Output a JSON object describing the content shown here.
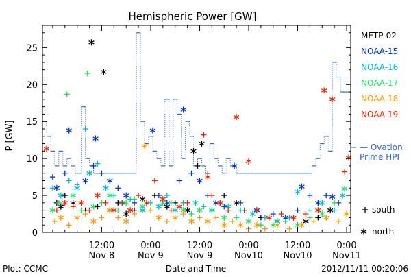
{
  "chart_data": {
    "type": "scatter",
    "title": "Hemispheric Power [GW]",
    "ylabel": "P [GW]",
    "xlabel": "Date and Time",
    "footer_left": "Plot: CCMC",
    "footer_right": "2012/11/11 00:20:06",
    "x_unit": "hours since 2012-11-08 00:00 UTC",
    "xlim": [
      -2.5,
      73
    ],
    "ylim": [
      0,
      28
    ],
    "yticks": [
      0,
      5,
      10,
      15,
      20,
      25
    ],
    "xticks": [
      {
        "x": 12,
        "line1": "12:00",
        "line2": "Nov 8"
      },
      {
        "x": 24,
        "line1": "0:00",
        "line2": "Nov 9"
      },
      {
        "x": 36,
        "line1": "12:00",
        "line2": "Nov 9"
      },
      {
        "x": 48,
        "line1": "0:00",
        "line2": "Nov10"
      },
      {
        "x": 60,
        "line1": "12:00",
        "line2": "Nov10"
      },
      {
        "x": 72,
        "line1": "0:00",
        "line2": "Nov11"
      }
    ],
    "satellites": [
      {
        "name": "METP-02",
        "color": "#000000"
      },
      {
        "name": "NOAA-15",
        "color": "#0033cc"
      },
      {
        "name": "NOAA-16",
        "color": "#00bbcc"
      },
      {
        "name": "NOAA-17",
        "color": "#22dd66"
      },
      {
        "name": "NOAA-18",
        "color": "#ff9900"
      },
      {
        "name": "NOAA-19",
        "color": "#ee2200"
      }
    ],
    "markers": {
      "south_symbol": "+",
      "south_label": "south",
      "north_symbol": "*",
      "north_label": "north"
    },
    "ovation": {
      "label_line1": "— Ovation",
      "label_line2": "Prime HPI",
      "color": "#3366cc",
      "steps": [
        [
          -2.5,
          15
        ],
        [
          -1.5,
          13
        ],
        [
          -0.5,
          11
        ],
        [
          0.5,
          9
        ],
        [
          1.5,
          11
        ],
        [
          2.5,
          9
        ],
        [
          3.5,
          10
        ],
        [
          4.5,
          9
        ],
        [
          5.5,
          8
        ],
        [
          7,
          17
        ],
        [
          8,
          10
        ],
        [
          9,
          9
        ],
        [
          10,
          8
        ],
        [
          15,
          8
        ],
        [
          18,
          8
        ],
        [
          20.5,
          27
        ],
        [
          21.5,
          15
        ],
        [
          22.5,
          12
        ],
        [
          23.5,
          13
        ],
        [
          24.5,
          11
        ],
        [
          25.5,
          10
        ],
        [
          26.5,
          9
        ],
        [
          27.5,
          18
        ],
        [
          28.5,
          9
        ],
        [
          29.5,
          18
        ],
        [
          30.5,
          16
        ],
        [
          31.5,
          10
        ],
        [
          32.5,
          15
        ],
        [
          33.5,
          13
        ],
        [
          34.5,
          9
        ],
        [
          35.5,
          10
        ],
        [
          36.5,
          9
        ],
        [
          37.5,
          8
        ],
        [
          38.5,
          12
        ],
        [
          39.5,
          10
        ],
        [
          40.5,
          9
        ],
        [
          41.5,
          8
        ],
        [
          42.5,
          10
        ],
        [
          43.5,
          9
        ],
        [
          44.5,
          9
        ],
        [
          45,
          8
        ],
        [
          58,
          8
        ],
        [
          62.5,
          8
        ],
        [
          63.5,
          9
        ],
        [
          64.5,
          10
        ],
        [
          65.5,
          12
        ],
        [
          66.5,
          13
        ],
        [
          67.5,
          11
        ],
        [
          68.5,
          23
        ],
        [
          69.5,
          21
        ],
        [
          70.5,
          19
        ],
        [
          73,
          19
        ]
      ]
    },
    "series": [
      {
        "name": "METP-02",
        "color": "#000000",
        "points": [
          [
            1,
            4,
            "+"
          ],
          [
            2,
            3.5,
            "*"
          ],
          [
            3,
            5,
            "+"
          ],
          [
            5,
            4,
            "*"
          ],
          [
            8,
            3,
            "+"
          ],
          [
            9.5,
            25.7,
            "*"
          ],
          [
            11,
            3.5,
            "+"
          ],
          [
            12.5,
            21.7,
            "*"
          ],
          [
            14,
            3,
            "*"
          ],
          [
            16,
            4,
            "+"
          ],
          [
            18,
            2.5,
            "*"
          ],
          [
            20,
            3,
            "+"
          ],
          [
            22,
            4.5,
            "*"
          ],
          [
            25,
            5,
            "+"
          ],
          [
            28,
            3.5,
            "*"
          ],
          [
            30,
            4,
            "+"
          ],
          [
            33,
            3,
            "*"
          ],
          [
            34.5,
            11,
            "*"
          ],
          [
            35.5,
            9,
            "+"
          ],
          [
            36.5,
            12,
            "*"
          ],
          [
            38,
            8,
            "+"
          ],
          [
            40,
            4,
            "*"
          ],
          [
            42,
            5,
            "+"
          ],
          [
            45,
            4,
            "*"
          ],
          [
            47,
            3,
            "+"
          ],
          [
            51,
            2,
            "+"
          ],
          [
            55,
            1.5,
            "*"
          ],
          [
            58,
            2,
            "+"
          ],
          [
            62,
            1.5,
            "*"
          ],
          [
            65,
            2,
            "+"
          ],
          [
            68,
            3,
            "*"
          ]
        ]
      },
      {
        "name": "NOAA-15",
        "color": "#0033cc",
        "points": [
          [
            0,
            7.5,
            "+"
          ],
          [
            1,
            6,
            "*"
          ],
          [
            3,
            8,
            "+"
          ],
          [
            4,
            13.8,
            "*"
          ],
          [
            6,
            6.5,
            "+"
          ],
          [
            8,
            7,
            "*"
          ],
          [
            10,
            9,
            "+"
          ],
          [
            10.5,
            12.7,
            "*"
          ],
          [
            12,
            8,
            "+"
          ],
          [
            14,
            7,
            "*"
          ],
          [
            16,
            6,
            "+"
          ],
          [
            18,
            5,
            "*"
          ],
          [
            20,
            4,
            "+"
          ],
          [
            24.5,
            13.8,
            "*"
          ],
          [
            26,
            5,
            "+"
          ],
          [
            28,
            4,
            "*"
          ],
          [
            31,
            7,
            "+"
          ],
          [
            32,
            16.6,
            "*"
          ],
          [
            34,
            8,
            "+"
          ],
          [
            36,
            7,
            "*"
          ],
          [
            38,
            5,
            "+"
          ],
          [
            40,
            4,
            "*"
          ],
          [
            42,
            3.5,
            "+"
          ],
          [
            44.5,
            9,
            "*"
          ],
          [
            46,
            4,
            "+"
          ],
          [
            50,
            3,
            "*"
          ],
          [
            54,
            2.5,
            "+"
          ],
          [
            57,
            2,
            "*"
          ],
          [
            60,
            3,
            "+"
          ],
          [
            61,
            6.2,
            "*"
          ],
          [
            63,
            5,
            "+"
          ],
          [
            65,
            4,
            "*"
          ],
          [
            67,
            5,
            "+"
          ],
          [
            68.5,
            4.8,
            "*"
          ],
          [
            70,
            4,
            "+"
          ]
        ]
      },
      {
        "name": "NOAA-16",
        "color": "#00bbcc",
        "points": [
          [
            0,
            6,
            "+"
          ],
          [
            2,
            5,
            "*"
          ],
          [
            4,
            7,
            "+"
          ],
          [
            6,
            6,
            "*"
          ],
          [
            8,
            14,
            "+"
          ],
          [
            9,
            8,
            "*"
          ],
          [
            11,
            9.3,
            "+"
          ],
          [
            13,
            6,
            "*"
          ],
          [
            15,
            5,
            "+"
          ],
          [
            17,
            4,
            "*"
          ],
          [
            19,
            4.5,
            "+"
          ],
          [
            22,
            3,
            "*"
          ],
          [
            24,
            4,
            "+"
          ],
          [
            26,
            3.5,
            "*"
          ],
          [
            28,
            5,
            "+"
          ],
          [
            30,
            3,
            "*"
          ],
          [
            32,
            4,
            "+"
          ],
          [
            35,
            4,
            "*"
          ],
          [
            37,
            3.5,
            "+"
          ],
          [
            39,
            3,
            "*"
          ],
          [
            41,
            4,
            "+"
          ],
          [
            43,
            3.5,
            "*"
          ],
          [
            46,
            3,
            "+"
          ],
          [
            49,
            2.5,
            "*"
          ],
          [
            52,
            2,
            "+"
          ],
          [
            55,
            1.5,
            "*"
          ],
          [
            58,
            2,
            "+"
          ],
          [
            60,
            5.5,
            "*"
          ],
          [
            63,
            3,
            "+"
          ],
          [
            66,
            4,
            "*"
          ],
          [
            69,
            3,
            "+"
          ],
          [
            71,
            5,
            "*"
          ]
        ]
      },
      {
        "name": "NOAA-17",
        "color": "#22dd66",
        "points": [
          [
            0,
            3,
            "*"
          ],
          [
            1.5,
            4,
            "+"
          ],
          [
            3.5,
            18.7,
            "+"
          ],
          [
            5,
            5,
            "*"
          ],
          [
            7,
            3,
            "+"
          ],
          [
            8.5,
            21.5,
            "+"
          ],
          [
            10,
            3.5,
            "*"
          ],
          [
            12,
            4,
            "+"
          ],
          [
            14,
            5,
            "*"
          ],
          [
            16,
            3,
            "+"
          ],
          [
            18,
            4,
            "*"
          ],
          [
            20,
            4.5,
            "+"
          ],
          [
            22,
            3.5,
            "*"
          ],
          [
            24,
            3,
            "+"
          ],
          [
            27,
            4,
            "*"
          ],
          [
            29,
            4,
            "+"
          ],
          [
            32,
            3,
            "*"
          ],
          [
            34,
            2.5,
            "+"
          ],
          [
            36,
            3,
            "*"
          ],
          [
            39,
            3,
            "+"
          ],
          [
            42,
            2,
            "*"
          ],
          [
            45,
            2,
            "+"
          ],
          [
            48,
            1.5,
            "*"
          ],
          [
            51,
            1,
            "+"
          ],
          [
            54,
            1,
            "*"
          ],
          [
            57,
            1.5,
            "+"
          ],
          [
            60,
            1,
            "*"
          ],
          [
            63,
            2,
            "+"
          ],
          [
            66,
            2.5,
            "*"
          ],
          [
            69,
            4,
            "+"
          ],
          [
            71.5,
            5.9,
            "*"
          ]
        ]
      },
      {
        "name": "NOAA-18",
        "color": "#ff9900",
        "points": [
          [
            0.5,
            1.5,
            "+"
          ],
          [
            2,
            2,
            "*"
          ],
          [
            4,
            1,
            "+"
          ],
          [
            6,
            2,
            "*"
          ],
          [
            8,
            2.5,
            "+"
          ],
          [
            10,
            1.5,
            "*"
          ],
          [
            12,
            2,
            "+"
          ],
          [
            14,
            3,
            "*"
          ],
          [
            16,
            2,
            "+"
          ],
          [
            18,
            1.5,
            "*"
          ],
          [
            20,
            2.5,
            "+"
          ],
          [
            22.5,
            11.7,
            "*"
          ],
          [
            24,
            3,
            "+"
          ],
          [
            26,
            2,
            "*"
          ],
          [
            28,
            1.5,
            "+"
          ],
          [
            30,
            2,
            "*"
          ],
          [
            32,
            2.5,
            "+"
          ],
          [
            34,
            1.5,
            "*"
          ],
          [
            36,
            2,
            "+"
          ],
          [
            38,
            1.5,
            "*"
          ],
          [
            40,
            2,
            "+"
          ],
          [
            42,
            1,
            "*"
          ],
          [
            44,
            1.5,
            "+"
          ],
          [
            46,
            1,
            "*"
          ],
          [
            48,
            0.5,
            "+"
          ],
          [
            50,
            1,
            "*"
          ],
          [
            52,
            0.5,
            "+"
          ],
          [
            55,
            1,
            "*"
          ],
          [
            58,
            0.5,
            "+"
          ],
          [
            61,
            1,
            "*"
          ],
          [
            64,
            1.5,
            "+"
          ],
          [
            67,
            2,
            "*"
          ],
          [
            70,
            1.5,
            "+"
          ],
          [
            72,
            2.5,
            "*"
          ]
        ]
      },
      {
        "name": "NOAA-19",
        "color": "#ee2200",
        "points": [
          [
            -1.5,
            11.3,
            "*"
          ],
          [
            1,
            3,
            "+"
          ],
          [
            3,
            4,
            "*"
          ],
          [
            5,
            3.5,
            "+"
          ],
          [
            7,
            4,
            "*"
          ],
          [
            9,
            3,
            "+"
          ],
          [
            11,
            5,
            "*"
          ],
          [
            13,
            4,
            "+"
          ],
          [
            15,
            3,
            "*"
          ],
          [
            17,
            4,
            "+"
          ],
          [
            19,
            3,
            "*"
          ],
          [
            21,
            5,
            "+"
          ],
          [
            23,
            4,
            "*"
          ],
          [
            25,
            7,
            "+"
          ],
          [
            27,
            4.5,
            "*"
          ],
          [
            29,
            3,
            "+"
          ],
          [
            31,
            3.5,
            "*"
          ],
          [
            33,
            4,
            "+"
          ],
          [
            37,
            13.2,
            "+"
          ],
          [
            38,
            7.5,
            "*"
          ],
          [
            39,
            5,
            "+"
          ],
          [
            41,
            4,
            "*"
          ],
          [
            43,
            3,
            "+"
          ],
          [
            45,
            15.6,
            "*"
          ],
          [
            48,
            9.6,
            "*"
          ],
          [
            50,
            3,
            "+"
          ],
          [
            53,
            2,
            "*"
          ],
          [
            56,
            2.5,
            "+"
          ],
          [
            59,
            2,
            "*"
          ],
          [
            62,
            2.5,
            "+"
          ],
          [
            65,
            3,
            "*"
          ],
          [
            66.5,
            19.2,
            "*"
          ],
          [
            68.5,
            18,
            "*"
          ],
          [
            71.5,
            8.2,
            "+"
          ],
          [
            72.5,
            10.1,
            "*"
          ]
        ]
      }
    ]
  }
}
